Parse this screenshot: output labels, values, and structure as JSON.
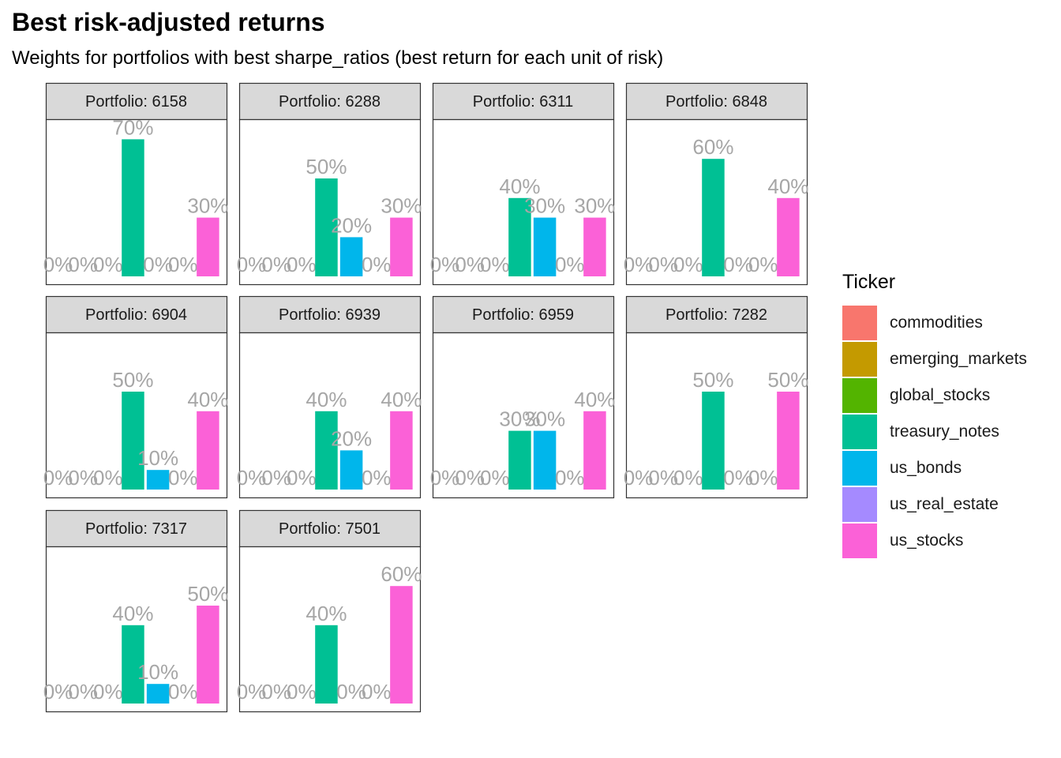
{
  "chart_data": {
    "type": "bar",
    "title": "Best risk-adjusted returns",
    "subtitle": "Weights for portfolios with best sharpe_ratios (best return for each unit of risk)",
    "facet_label_prefix": "Portfolio: ",
    "legend_title": "Ticker",
    "legend_position": "right",
    "ylim": [
      0,
      0.7
    ],
    "categories": [
      "commodities",
      "emerging_markets",
      "global_stocks",
      "treasury_notes",
      "us_bonds",
      "us_real_estate",
      "us_stocks"
    ],
    "colors": [
      "#F8766D",
      "#C49A00",
      "#53B400",
      "#00C094",
      "#00B6EB",
      "#A58AFF",
      "#FB61D7"
    ],
    "label_color": "#A6A6A6",
    "facets": [
      {
        "portfolio": "6158",
        "values": [
          0,
          0,
          0,
          0.7,
          0,
          0,
          0.3
        ],
        "labels": [
          "0%",
          "0%",
          "0%",
          "70%",
          "0%",
          "0%",
          "30%"
        ]
      },
      {
        "portfolio": "6288",
        "values": [
          0,
          0,
          0,
          0.5,
          0.2,
          0,
          0.3
        ],
        "labels": [
          "0%",
          "0%",
          "0%",
          "50%",
          "20%",
          "0%",
          "30%"
        ]
      },
      {
        "portfolio": "6311",
        "values": [
          0,
          0,
          0,
          0.4,
          0.3,
          0,
          0.3
        ],
        "labels": [
          "0%",
          "0%",
          "0%",
          "40%",
          "30%",
          "0%",
          "30%"
        ]
      },
      {
        "portfolio": "6848",
        "values": [
          0,
          0,
          0,
          0.6,
          0,
          0,
          0.4
        ],
        "labels": [
          "0%",
          "0%",
          "0%",
          "60%",
          "0%",
          "0%",
          "40%"
        ]
      },
      {
        "portfolio": "6904",
        "values": [
          0,
          0,
          0,
          0.5,
          0.1,
          0,
          0.4
        ],
        "labels": [
          "0%",
          "0%",
          "0%",
          "50%",
          "10%",
          "0%",
          "40%"
        ]
      },
      {
        "portfolio": "6939",
        "values": [
          0,
          0,
          0,
          0.4,
          0.2,
          0,
          0.4
        ],
        "labels": [
          "0%",
          "0%",
          "0%",
          "40%",
          "20%",
          "0%",
          "40%"
        ]
      },
      {
        "portfolio": "6959",
        "values": [
          0,
          0,
          0,
          0.3,
          0.3,
          0,
          0.4
        ],
        "labels": [
          "0%",
          "0%",
          "0%",
          "30%",
          "30%",
          "0%",
          "40%"
        ]
      },
      {
        "portfolio": "7282",
        "values": [
          0,
          0,
          0,
          0.5,
          0,
          0,
          0.5
        ],
        "labels": [
          "0%",
          "0%",
          "0%",
          "50%",
          "0%",
          "0%",
          "50%"
        ]
      },
      {
        "portfolio": "7317",
        "values": [
          0,
          0,
          0,
          0.4,
          0.1,
          0,
          0.5
        ],
        "labels": [
          "0%",
          "0%",
          "0%",
          "40%",
          "10%",
          "0%",
          "50%"
        ]
      },
      {
        "portfolio": "7501",
        "values": [
          0,
          0,
          0,
          0.4,
          0,
          0,
          0.6
        ],
        "labels": [
          "0%",
          "0%",
          "0%",
          "40%",
          "0%",
          "0%",
          "60%"
        ]
      }
    ]
  }
}
